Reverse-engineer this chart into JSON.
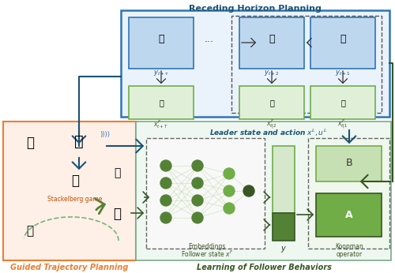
{
  "rhp_title": "Receding Horizon Planning",
  "gtp_label": "Guided Trajectory Planning",
  "lfb_label": "Learning of Follower Behaviors",
  "leader_label": "Leader state and action $x^L, u^L$",
  "follower_label": "Follower state $x^F$",
  "embeddings_label": "Embeddings",
  "koopman_label": "Koopman\noperator",
  "stackelberg_label": "Stackelberg game",
  "y_label": "$y$",
  "blue_dark": "#1a5276",
  "blue_med": "#2e75b6",
  "blue_light": "#bdd7ee",
  "blue_very_light": "#ddeeff",
  "green_dark": "#375623",
  "green_med": "#548235",
  "green_light": "#e2efda",
  "green_mid": "#a9d18e",
  "green_box": "#70ad47",
  "green_fill_A": "#70ad47",
  "green_fill_B": "#c6e0b4",
  "orange_border": "#ed7d31",
  "orange_fill": "#fef0e7",
  "gray_dash": "#666666",
  "bg_white": "#ffffff",
  "rhp_bg": "#eaf2fb",
  "right_panel_bg": "#eef7f0",
  "right_panel_border": "#7aab8a"
}
